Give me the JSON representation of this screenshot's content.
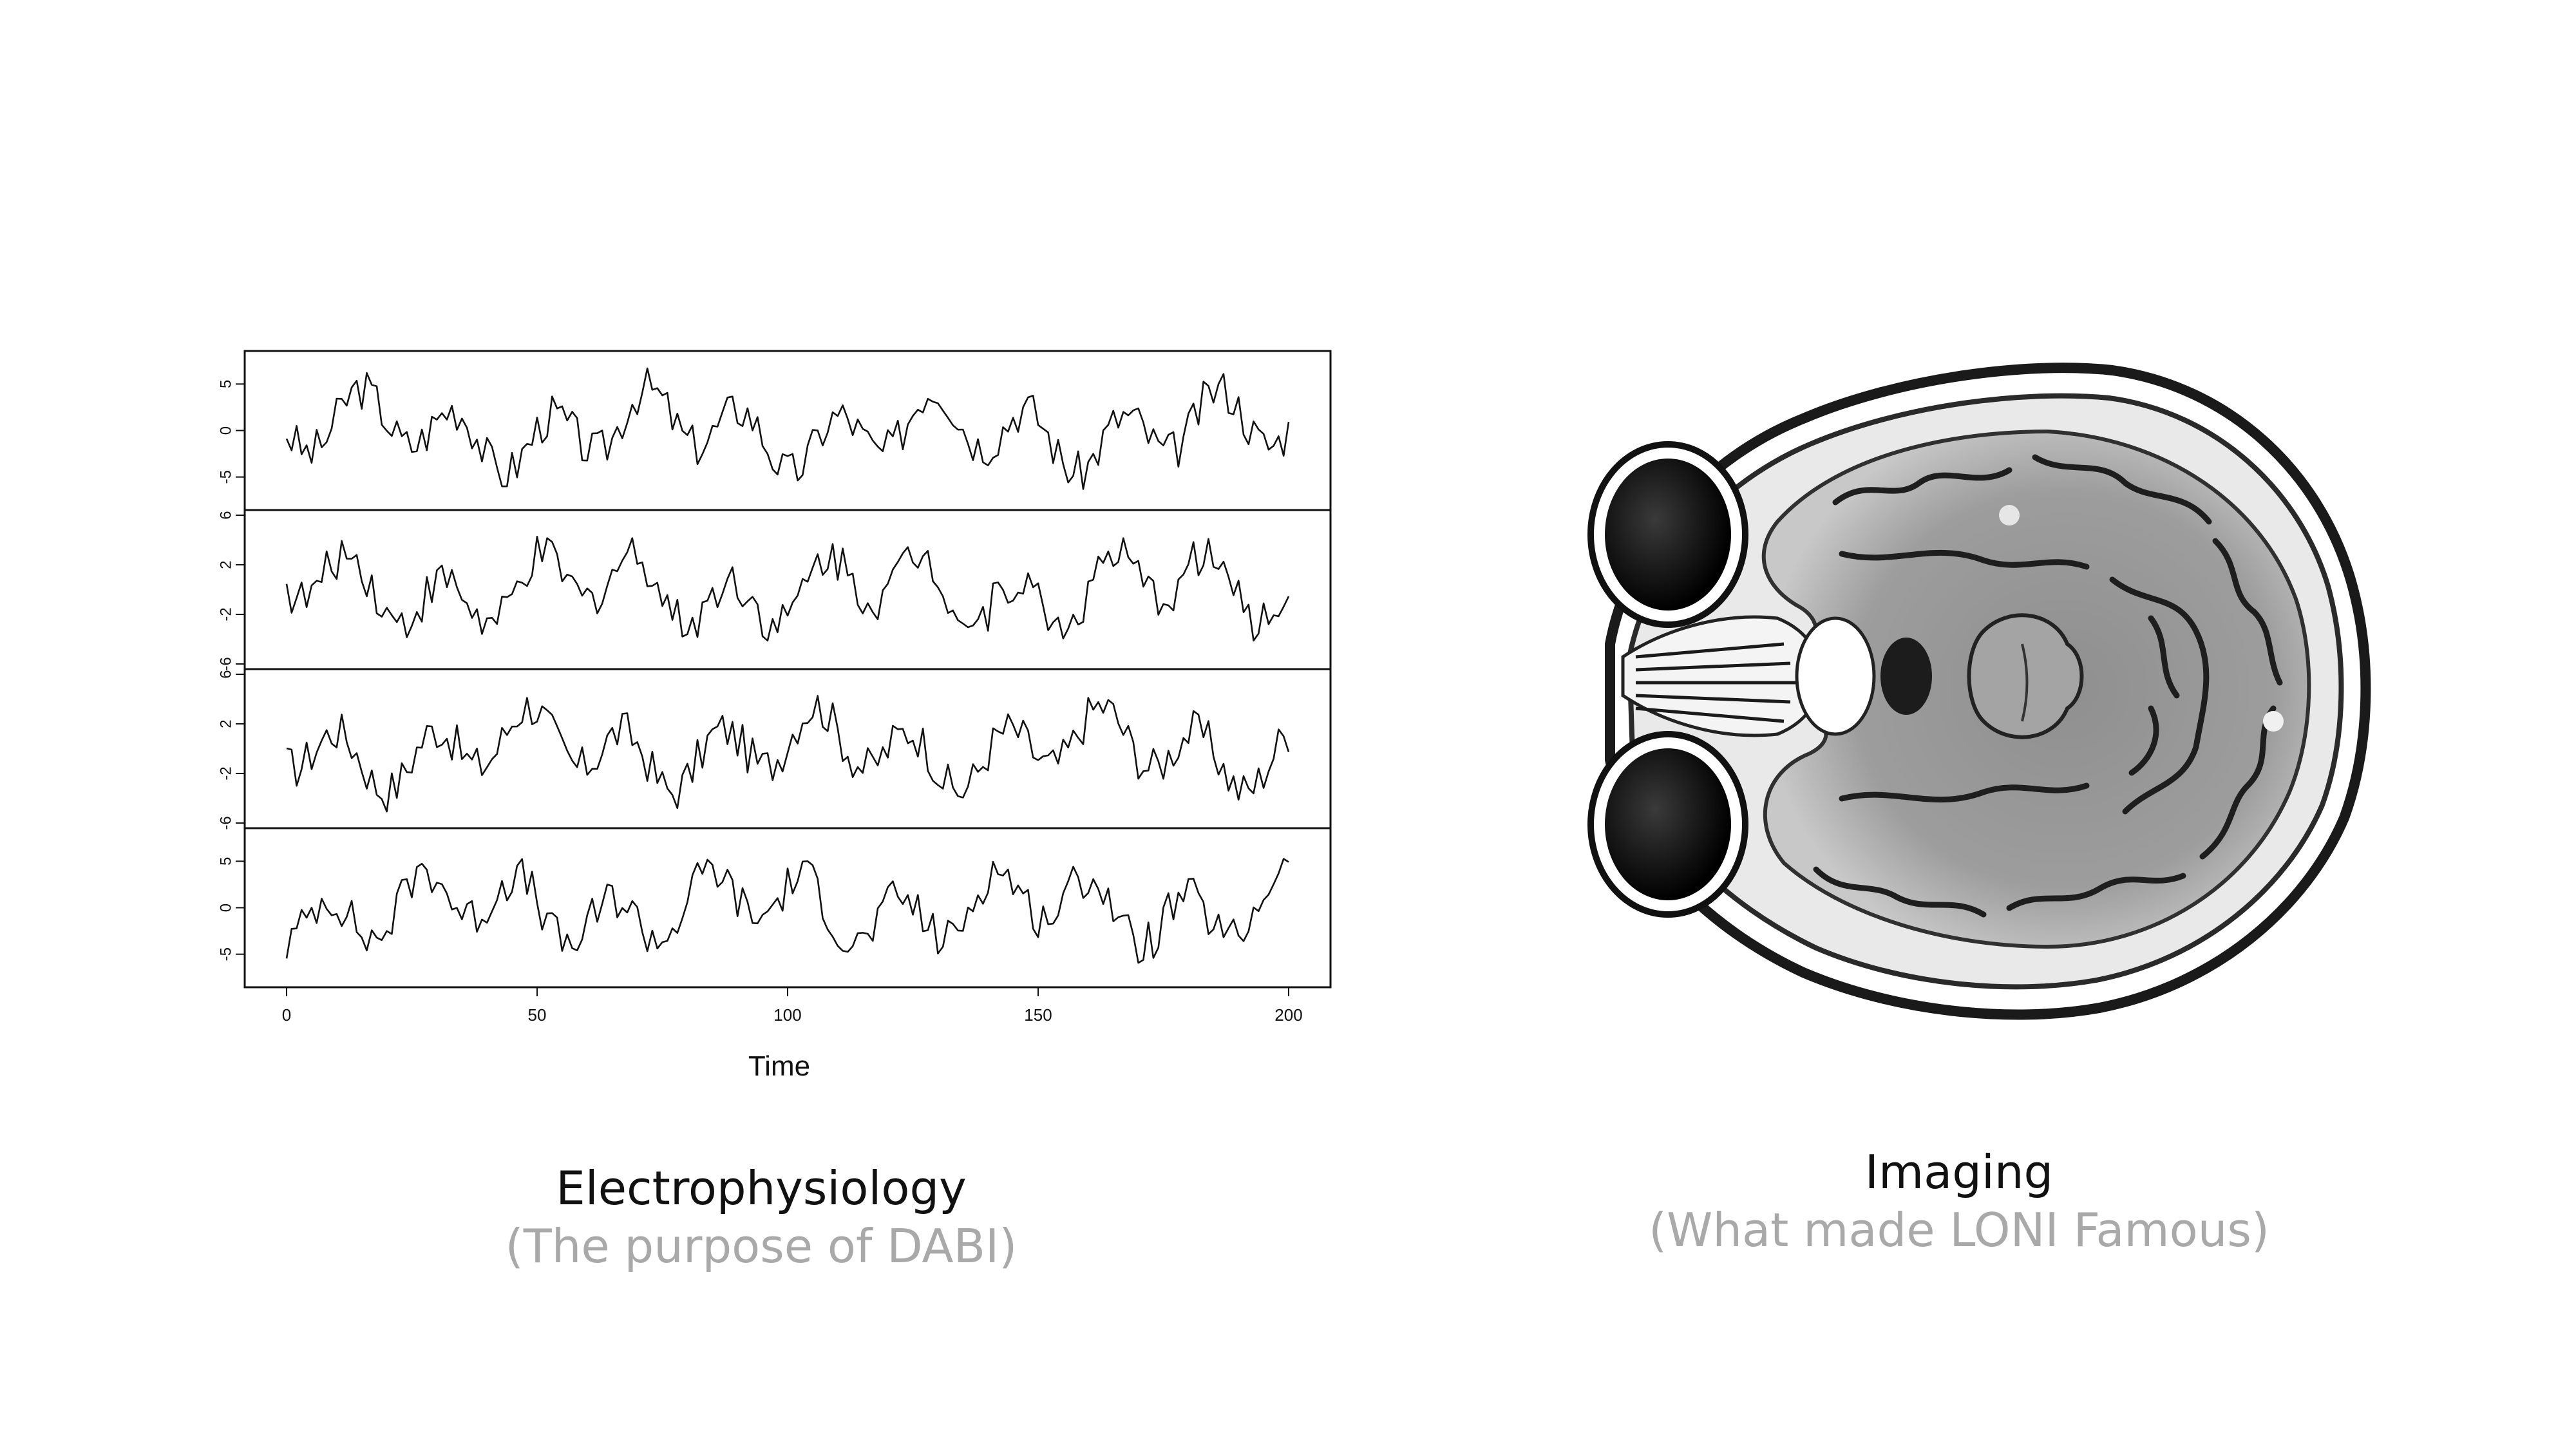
{
  "left_panel": {
    "title": "Electrophysiology",
    "subtitle": "(The purpose of DABI)"
  },
  "right_panel": {
    "title": "Imaging",
    "subtitle": "(What made LONI Famous)"
  },
  "chart_data": {
    "type": "line",
    "xlabel": "Time",
    "xlim": [
      0,
      200
    ],
    "x_ticks": [
      "0",
      "50",
      "100",
      "150",
      "200"
    ],
    "panels": [
      {
        "ylim": [
          -8,
          8
        ],
        "y_ticks": [
          "5",
          "0",
          "-5"
        ]
      },
      {
        "ylim": [
          -6,
          6
        ],
        "y_ticks": [
          "6",
          "2",
          "-2",
          "-6"
        ]
      },
      {
        "ylim": [
          -6,
          6
        ],
        "y_ticks": [
          "6",
          "2",
          "-2",
          "-6"
        ]
      },
      {
        "ylim": [
          -8,
          8
        ],
        "y_ticks": [
          "5",
          "0",
          "-5"
        ]
      }
    ]
  }
}
